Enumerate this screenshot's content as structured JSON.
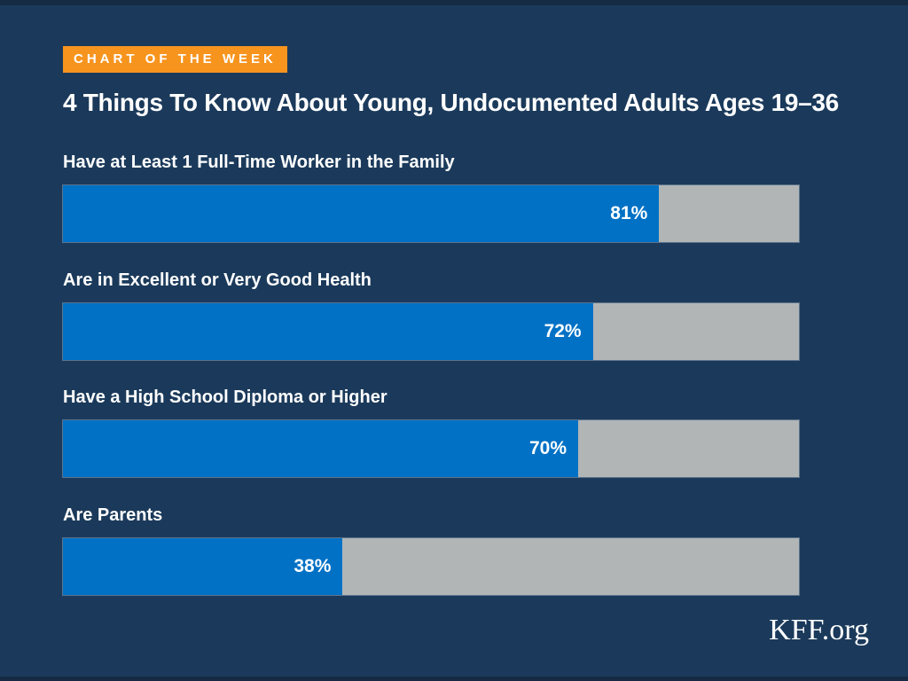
{
  "page": {
    "background": "#1B3A5B",
    "edge_strip_color": "#152B43"
  },
  "badge": {
    "label": "CHART OF THE WEEK",
    "background": "#F7941E",
    "text_color": "#FFFFFF"
  },
  "title": "4 Things To Know About Young, Undocumented Adults Ages 19–36",
  "footer": {
    "brand": "KFF.org"
  },
  "chart_data": {
    "type": "bar",
    "orientation": "horizontal",
    "title": "4 Things To Know About Young, Undocumented Adults Ages 19–36",
    "categories": [
      "Have at Least 1 Full-Time Worker in the Family",
      "Are in Excellent or Very Good Health",
      "Have a High School Diploma or Higher",
      "Are Parents"
    ],
    "values": [
      81,
      72,
      70,
      38
    ],
    "value_labels": [
      "81%",
      "72%",
      "70%",
      "38%"
    ],
    "xlim": [
      0,
      100
    ],
    "grid": false,
    "legend": false,
    "bar_color": "#0071C5",
    "track_color": "#B1B5B6",
    "label_color": "#FFFFFF",
    "value_label_position": "inside-right"
  }
}
